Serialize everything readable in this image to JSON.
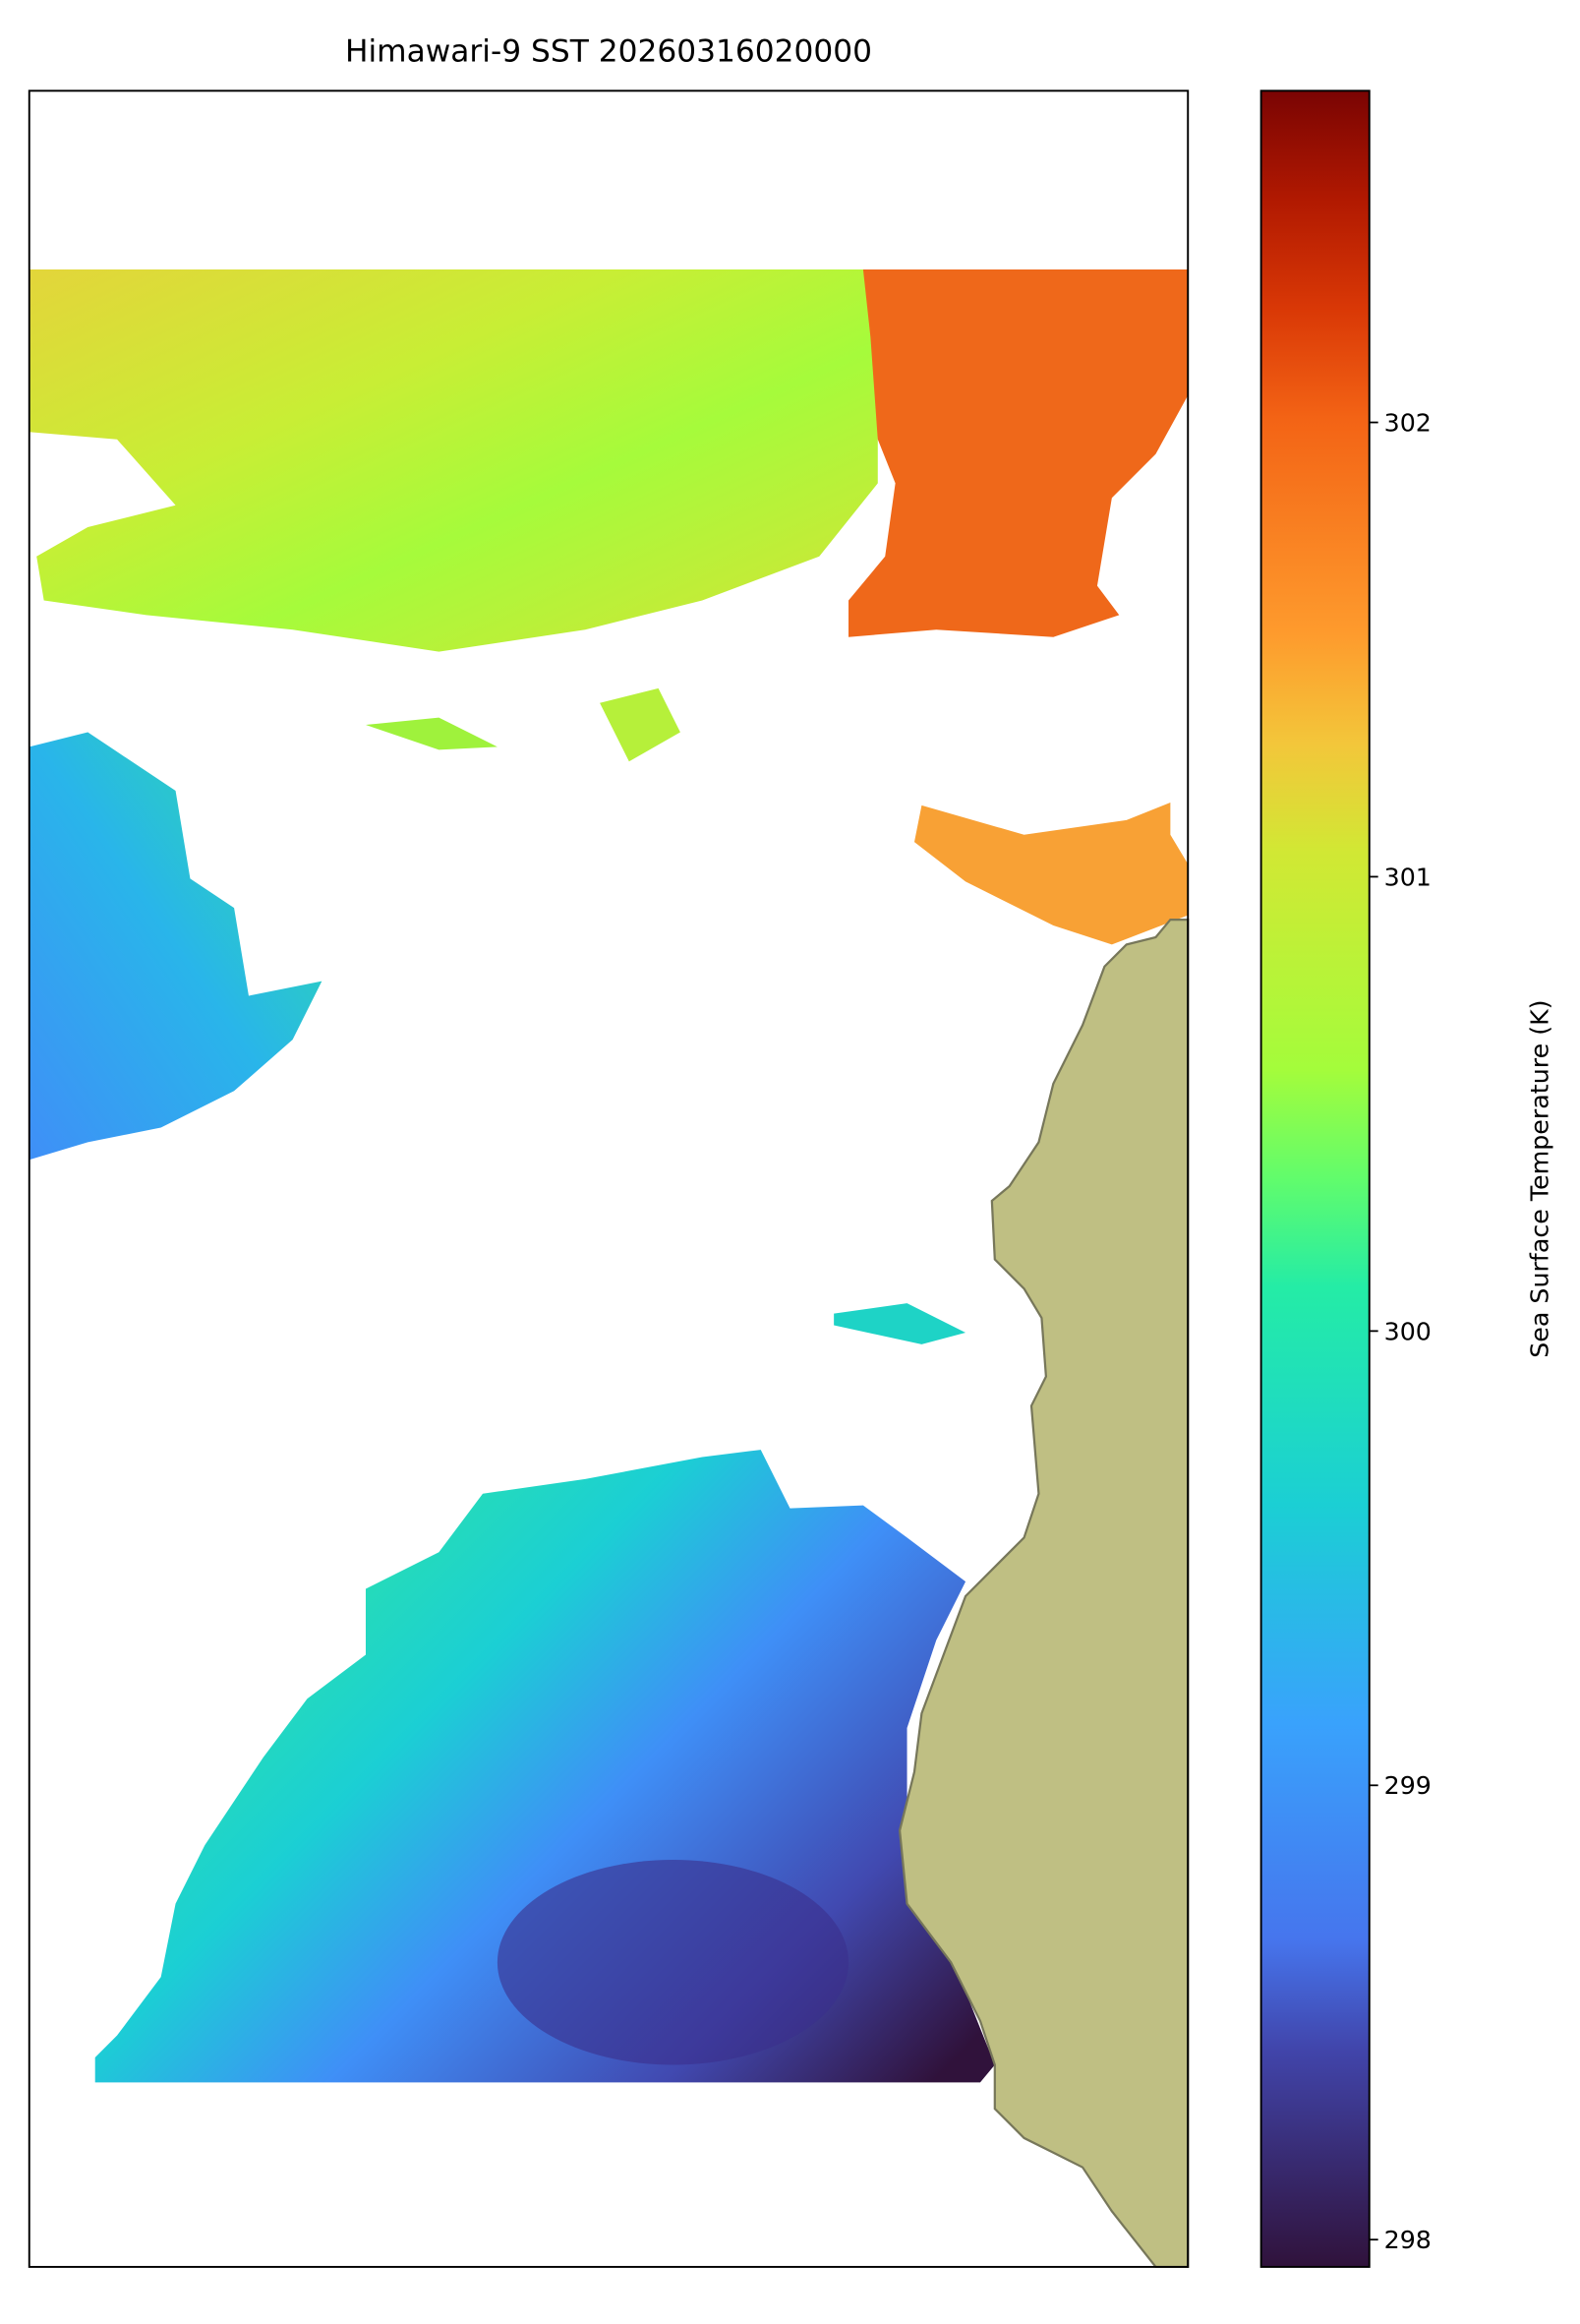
{
  "chart_data": {
    "type": "heatmap",
    "title": "Himawari-9 SST 20260316020000",
    "colorbar_label": "Sea Surface Temperature (K)",
    "colormap": "turbo",
    "clim": [
      297.94,
      302.73
    ],
    "cticks": [
      298,
      299,
      300,
      301,
      302
    ]
  }
}
